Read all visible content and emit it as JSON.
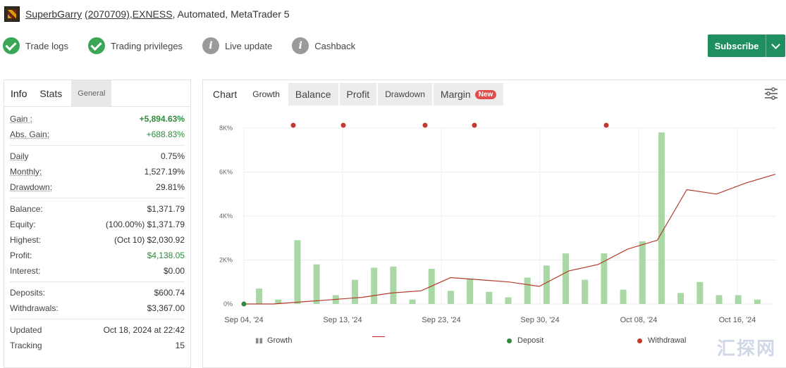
{
  "header": {
    "user": "SuperbGarry",
    "account_note": "(2070709)",
    "broker": "EXNESS",
    "type_text": ", Automated",
    "platform_text": "MetaTrader 5"
  },
  "badges": [
    {
      "label": "Trade logs",
      "status": "check"
    },
    {
      "label": "Trading privileges",
      "status": "check"
    },
    {
      "label": "Live update",
      "status": "info"
    },
    {
      "label": "Cashback",
      "status": "info"
    }
  ],
  "subscribe_label": "Subscribe",
  "left_tabs": [
    "Info",
    "Stats",
    "General"
  ],
  "stats1": [
    {
      "k": "Gain :",
      "v": "+5,894.63%",
      "style": "green bold"
    },
    {
      "k": "Abs. Gain:",
      "v": "+688.83%",
      "style": "green"
    }
  ],
  "stats2": [
    {
      "k": "Daily",
      "v": "0.75%"
    },
    {
      "k": "Monthly:",
      "v": "1,527.19%"
    },
    {
      "k": "Drawdown:",
      "v": "29.81%"
    }
  ],
  "stats3": [
    {
      "k": "Balance:",
      "v": "$1,371.79"
    },
    {
      "k": "Equity:",
      "v": "(100.00%) $1,371.79"
    },
    {
      "k": "Highest:",
      "v": "(Oct 10) $2,030.92"
    },
    {
      "k": "Profit:",
      "v": "$4,138.05",
      "style": "green"
    },
    {
      "k": "Interest:",
      "v": "$0.00"
    }
  ],
  "stats4": [
    {
      "k": "Deposits:",
      "v": "$600.74"
    },
    {
      "k": "Withdrawals:",
      "v": "$3,367.00"
    }
  ],
  "stats5": [
    {
      "k": "Updated",
      "v": "Oct 18, 2024 at 22:42"
    },
    {
      "k": "Tracking",
      "v": "15"
    }
  ],
  "chart_tabs": [
    "Chart",
    "Growth",
    "Balance",
    "Profit",
    "Drawdown",
    "Margin"
  ],
  "new_badge": "New",
  "legend": {
    "growth": "Growth",
    "deposit": "Deposit",
    "withdrawal": "Withdrawal"
  },
  "colors": {
    "line": "#b33a2a",
    "bar": "#a9d8a5",
    "deposit": "#2e8b3e",
    "withdrawal": "#c0392b",
    "subscribe": "#1f8f5f"
  },
  "chart_data": {
    "type": "bar",
    "y_ticks": [
      "8K%",
      "6K%",
      "4K%",
      "2K%",
      "0%"
    ],
    "y_range": [
      0,
      8000
    ],
    "x_ticks": [
      "Sep 04, '24",
      "Sep 13, '24",
      "Sep 23, '24",
      "Sep 30, '24",
      "Oct 08, '24",
      "Oct 16, '24"
    ],
    "daily_bars_pct": [
      700,
      200,
      2900,
      1800,
      400,
      1100,
      1650,
      1700,
      200,
      1600,
      600,
      1150,
      550,
      300,
      1200,
      1750,
      2300,
      1100,
      2300,
      650,
      2850,
      7800,
      500,
      1000,
      400,
      400,
      200
    ],
    "growth_line_pct": [
      0,
      0,
      100,
      200,
      300,
      500,
      600,
      1200,
      1100,
      1000,
      800,
      1500,
      1800,
      2500,
      2900,
      5200,
      5000,
      5500,
      5900
    ],
    "withdrawal_markers": 5,
    "deposit_markers": 1
  }
}
